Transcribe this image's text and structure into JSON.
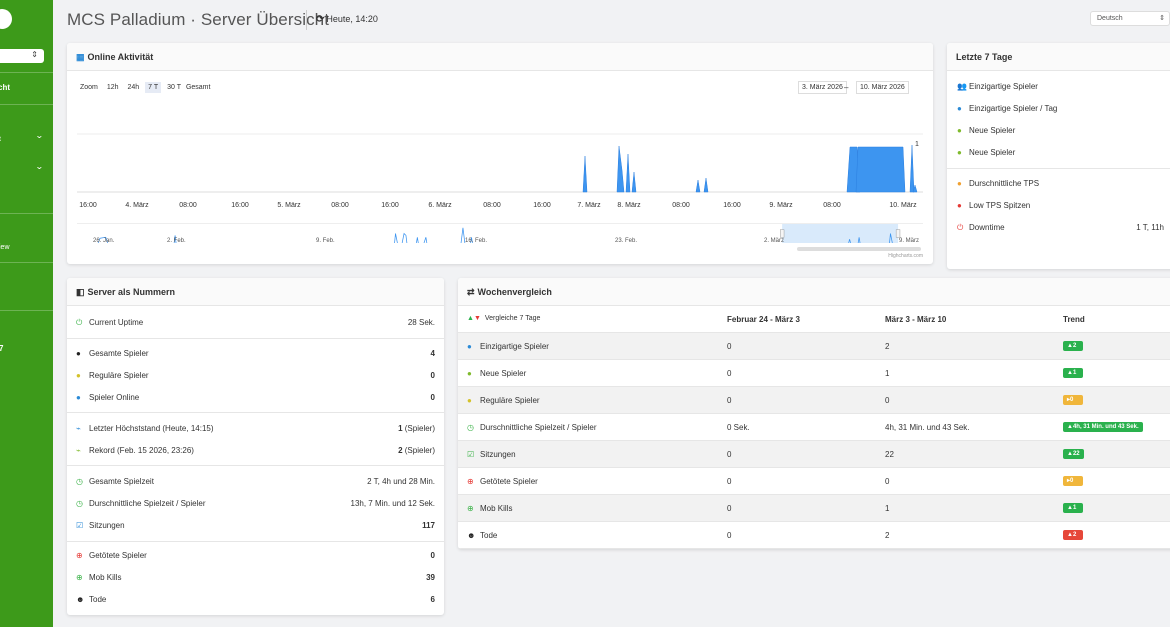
{
  "sidebar": {
    "active_item_fragment": "cht",
    "overview_fragment": "iew",
    "number_fragment": "7"
  },
  "header": {
    "title": "MCS Palladium · Server Übersicht",
    "refresh_text": "Heute, 14:20",
    "language": "Deutsch"
  },
  "online": {
    "title": "Online Aktivität",
    "zoom_label": "Zoom",
    "zoom_options": [
      "12h",
      "24h",
      "7 T",
      "30 T",
      "Gesamt"
    ],
    "zoom_selected": "7 T",
    "date_from": "3. März 2026",
    "date_to": "10. März 2026",
    "date_sep": "–",
    "ytick": "1",
    "x_labels": [
      "16:00",
      "4. März",
      "08:00",
      "16:00",
      "5. März",
      "08:00",
      "16:00",
      "6. März",
      "08:00",
      "16:00",
      "7. März",
      "8. März",
      "08:00",
      "16:00",
      "9. März",
      "08:00",
      "10. März"
    ],
    "navigator_labels": [
      "26. Jan.",
      "2. Feb.",
      "9. Feb.",
      "16. Feb.",
      "23. Feb.",
      "2. März",
      "9. März"
    ],
    "credit": "Highcharts.com",
    "series_color": "#3d95f0"
  },
  "last7": {
    "title": "Letzte 7 Tage",
    "items": [
      {
        "label": "Einzigartige Spieler",
        "icon": "users-icon",
        "color": "#2b8ad6"
      },
      {
        "label": "Einzigartige Spieler / Tag",
        "icon": "user-icon",
        "color": "#2b8ad6"
      },
      {
        "label": "Neue Spieler",
        "icon": "users-icon",
        "color": "#7fba2c"
      },
      {
        "label": "Neue Spieler",
        "icon": "users-icon",
        "color": "#7fba2c"
      },
      {
        "label": "Durschnittliche TPS",
        "icon": "tachometer-icon",
        "color": "#f0a030"
      },
      {
        "label": "Low TPS Spitzen",
        "icon": "exclamation-icon",
        "color": "#e53935"
      },
      {
        "label": "Downtime",
        "icon": "power-icon",
        "color": "#e53935",
        "value": "1 T, 11h"
      }
    ]
  },
  "nums": {
    "title": "Server als Nummern",
    "rows": [
      {
        "label": "Current Uptime",
        "value": "28 Sek.",
        "bold": false,
        "icon": "power-icon",
        "color": "#3db34a"
      },
      {
        "label": "Gesamte Spieler",
        "value": "4",
        "bold": true,
        "icon": "users-icon",
        "color": "#222"
      },
      {
        "label": "Reguläre Spieler",
        "value": "0",
        "bold": true,
        "icon": "users-icon",
        "color": "#d4c22a"
      },
      {
        "label": "Spieler Online",
        "value": "0",
        "bold": true,
        "icon": "user-icon",
        "color": "#2b8ad6"
      },
      {
        "label": "Letzter Höchststand (Heute, 14:15)",
        "value_bold": "1",
        "value_rest": " (Spieler)",
        "icon": "chart-line-icon",
        "color": "#2b8ad6"
      },
      {
        "label": "Rekord (Feb. 15 2026, 23:26)",
        "value_bold": "2",
        "value_rest": " (Spieler)",
        "icon": "chart-line-icon",
        "color": "#7fba2c"
      },
      {
        "label": "Gesamte Spielzeit",
        "value": "2 T, 4h und 28 Min.",
        "bold": false,
        "icon": "clock-icon",
        "color": "#3db34a"
      },
      {
        "label": "Durschnittliche Spielzeit / Spieler",
        "value": "13h, 7 Min. und 12 Sek.",
        "bold": false,
        "icon": "clock-icon",
        "color": "#3db34a"
      },
      {
        "label": "Sitzungen",
        "value": "117",
        "bold": true,
        "icon": "calendar-check-icon",
        "color": "#2b8ad6"
      },
      {
        "label": "Getötete Spieler",
        "value": "0",
        "bold": true,
        "icon": "crosshairs-icon",
        "color": "#e53935"
      },
      {
        "label": "Mob Kills",
        "value": "39",
        "bold": true,
        "icon": "crosshairs-icon",
        "color": "#3db34a"
      },
      {
        "label": "Tode",
        "value": "6",
        "bold": true,
        "icon": "skull-icon",
        "color": "#222"
      }
    ]
  },
  "week": {
    "title": "Wochenvergleich",
    "header": {
      "compare": "Vergleiche 7 Tage",
      "col1": "Februar 24 - März 3",
      "col2": "März 3 - März 10",
      "col3": "Trend"
    },
    "rows": [
      {
        "label": "Einzigartige Spieler",
        "a": "0",
        "b": "2",
        "trend": "▲2",
        "tc": "g",
        "icon": "users-icon",
        "color": "#2b8ad6"
      },
      {
        "label": "Neue Spieler",
        "a": "0",
        "b": "1",
        "trend": "▲1",
        "tc": "g",
        "icon": "users-icon",
        "color": "#7fba2c"
      },
      {
        "label": "Reguläre Spieler",
        "a": "0",
        "b": "0",
        "trend": "▸0",
        "tc": "y",
        "icon": "users-icon",
        "color": "#d4c22a"
      },
      {
        "label": "Durschnittliche Spielzeit / Spieler",
        "a": "0 Sek.",
        "b": "4h, 31 Min. und 43 Sek.",
        "trend": "▲4h, 31 Min. und 43 Sek.",
        "tc": "g",
        "icon": "clock-icon",
        "color": "#3db34a"
      },
      {
        "label": "Sitzungen",
        "a": "0",
        "b": "22",
        "trend": "▲22",
        "tc": "g",
        "icon": "calendar-check-icon",
        "color": "#3db34a"
      },
      {
        "label": "Getötete Spieler",
        "a": "0",
        "b": "0",
        "trend": "▸0",
        "tc": "y",
        "icon": "crosshairs-icon",
        "color": "#e53935"
      },
      {
        "label": "Mob Kills",
        "a": "0",
        "b": "1",
        "trend": "▲1",
        "tc": "g",
        "icon": "crosshairs-icon",
        "color": "#3db34a"
      },
      {
        "label": "Tode",
        "a": "0",
        "b": "2",
        "trend": "▲2",
        "tc": "r",
        "icon": "skull-icon",
        "color": "#222"
      }
    ]
  }
}
